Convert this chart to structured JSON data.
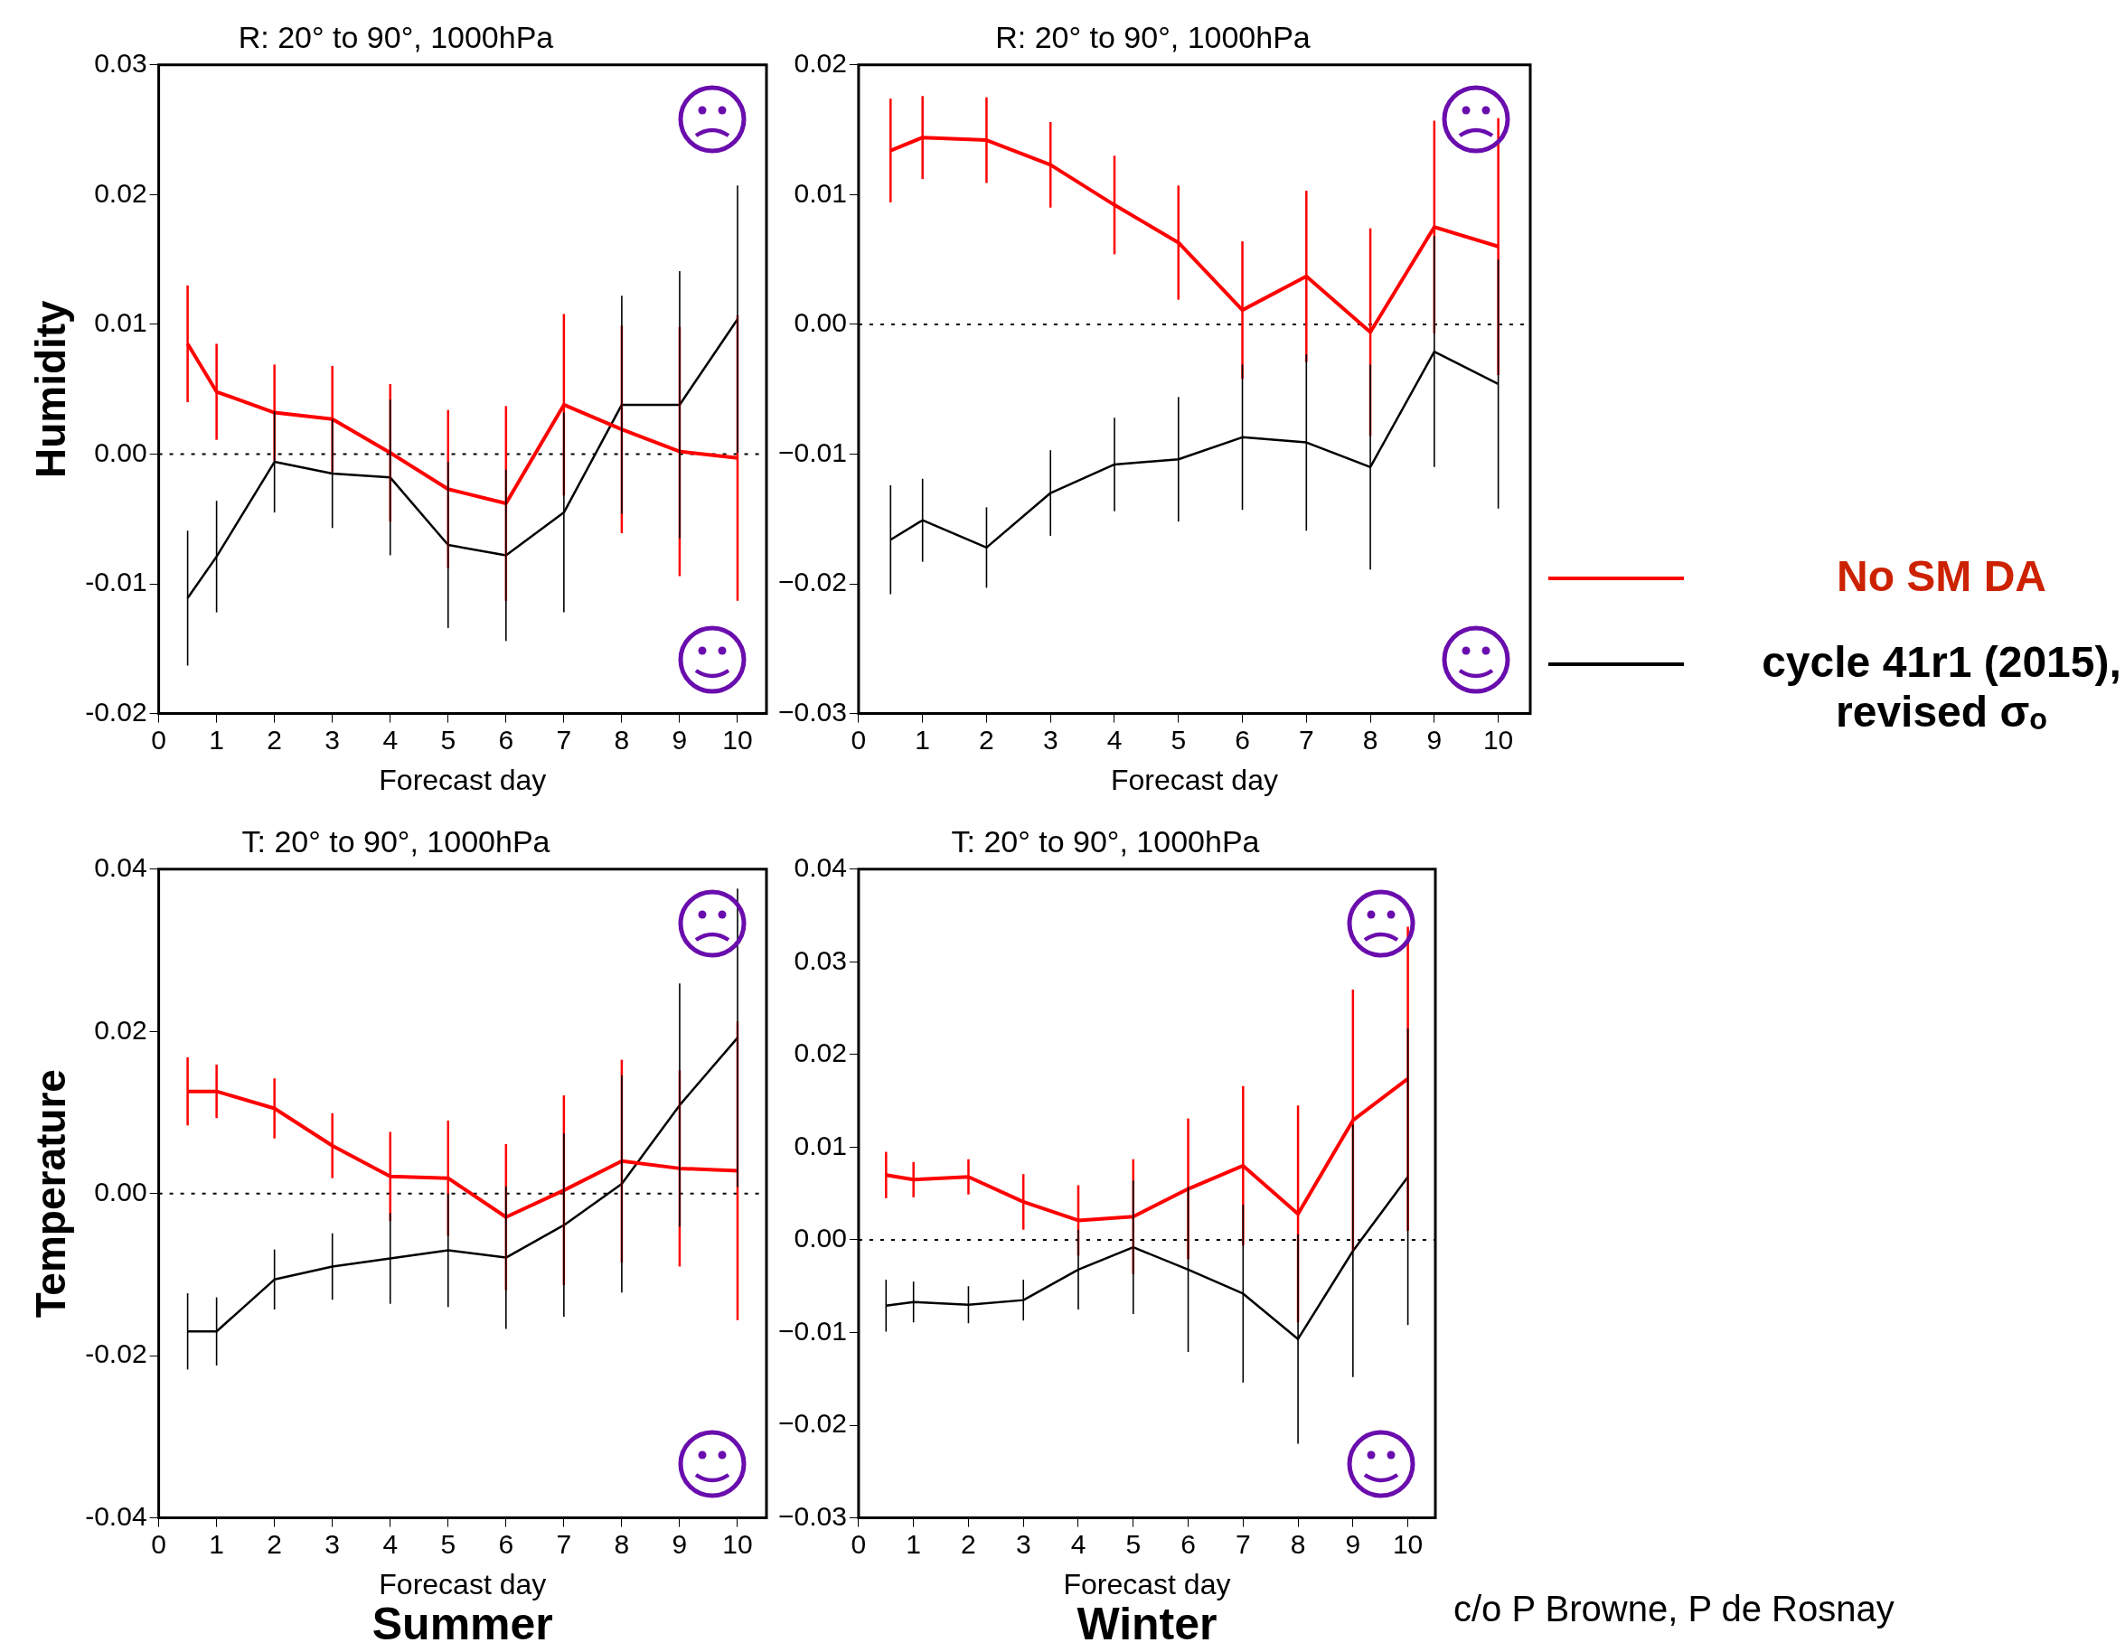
{
  "chart_data": [
    {
      "type": "line",
      "title": "R: 20° to 90°, 1000hPa",
      "xlabel": "Forecast day",
      "ylabel": "Humidity",
      "x": [
        0.5,
        1,
        2,
        3,
        4,
        5,
        6,
        7,
        8,
        9,
        10
      ],
      "xlim": [
        0,
        10.5
      ],
      "xticks": [
        0,
        1,
        2,
        3,
        4,
        5,
        6,
        7,
        8,
        9,
        10
      ],
      "ylim": [
        -0.02,
        0.03
      ],
      "yticks": [
        {
          "value": -0.02,
          "label": "-0.02"
        },
        {
          "value": -0.01,
          "label": "-0.01"
        },
        {
          "value": 0,
          "label": "0.00"
        },
        {
          "value": 0.01,
          "label": "0.01"
        },
        {
          "value": 0.02,
          "label": "0.02"
        },
        {
          "value": 0.03,
          "label": "0.03"
        }
      ],
      "marker": "none",
      "grid": false,
      "legend": false,
      "series": [
        {
          "color": "#ff0000",
          "values": [
            0.0085,
            0.0048,
            0.0032,
            0.0027,
            0.0001,
            -0.0027,
            -0.0038,
            0.0038,
            0.0019,
            0.0002,
            -0.0003
          ],
          "errors": [
            0.0045,
            0.0037,
            0.0037,
            0.0041,
            0.0053,
            0.0061,
            0.0075,
            0.007,
            0.008,
            0.0096,
            0.011
          ]
        },
        {
          "color": "#000000",
          "values": [
            -0.0111,
            -0.0079,
            -0.0006,
            -0.0015,
            -0.0018,
            -0.007,
            -0.0078,
            -0.0045,
            0.0038,
            0.0038,
            0.0104
          ],
          "errors": [
            0.0052,
            0.0043,
            0.0039,
            0.0042,
            0.006,
            0.0064,
            0.0066,
            0.0077,
            0.0084,
            0.0103,
            0.0103
          ]
        }
      ],
      "ref_lines": [
        {
          "axis": "y",
          "value": 0,
          "color": "#000000",
          "line_style": "dotted"
        }
      ]
    },
    {
      "type": "line",
      "title": "R: 20° to 90°, 1000hPa",
      "xlabel": "Forecast day",
      "x": [
        0.5,
        1,
        2,
        3,
        4,
        5,
        6,
        7,
        8,
        9,
        10
      ],
      "xlim": [
        0,
        10.5
      ],
      "xticks": [
        0,
        1,
        2,
        3,
        4,
        5,
        6,
        7,
        8,
        9,
        10
      ],
      "ylim": [
        -0.03,
        0.02
      ],
      "yticks": [
        {
          "value": -0.03,
          "label": "−0.03"
        },
        {
          "value": -0.02,
          "label": "−0.02"
        },
        {
          "value": -0.01,
          "label": "−0.01"
        },
        {
          "value": 0,
          "label": "0.00"
        },
        {
          "value": 0.01,
          "label": "0.01"
        },
        {
          "value": 0.02,
          "label": "0.02"
        }
      ],
      "marker": "none",
      "grid": false,
      "legend": "right",
      "series": [
        {
          "name": "No SM DA",
          "color": "#ff0000",
          "values": [
            0.0134,
            0.0144,
            0.0142,
            0.0123,
            0.0092,
            0.0063,
            0.0011,
            0.0037,
            -0.0006,
            0.0075,
            0.006
          ],
          "errors": [
            0.004,
            0.0032,
            0.0033,
            0.0033,
            0.0038,
            0.0044,
            0.0053,
            0.0066,
            0.008,
            0.0082,
            0.0099
          ]
        },
        {
          "name": "cycle 41r1 (2015), revised σₒ",
          "color": "#000000",
          "values": [
            -0.0166,
            -0.0151,
            -0.0172,
            -0.013,
            -0.0108,
            -0.0104,
            -0.0087,
            -0.0091,
            -0.011,
            -0.0021,
            -0.0046
          ],
          "errors": [
            0.0042,
            0.0032,
            0.0031,
            0.0033,
            0.0036,
            0.0048,
            0.0056,
            0.0068,
            0.0079,
            0.0089,
            0.0096
          ]
        }
      ],
      "ref_lines": [
        {
          "axis": "y",
          "value": 0,
          "color": "#000000",
          "line_style": "dotted"
        }
      ]
    },
    {
      "type": "line",
      "title": "T: 20° to 90°, 1000hPa",
      "xlabel": "Forecast day",
      "ylabel": "Temperature",
      "x": [
        0.5,
        1,
        2,
        3,
        4,
        5,
        6,
        7,
        8,
        9,
        10
      ],
      "xlim": [
        0,
        10.5
      ],
      "xticks": [
        0,
        1,
        2,
        3,
        4,
        5,
        6,
        7,
        8,
        9,
        10
      ],
      "ylim": [
        -0.04,
        0.04
      ],
      "yticks": [
        {
          "value": -0.04,
          "label": "-0.04"
        },
        {
          "value": -0.02,
          "label": "-0.02"
        },
        {
          "value": 0,
          "label": "0.00"
        },
        {
          "value": 0.02,
          "label": "0.02"
        },
        {
          "value": 0.04,
          "label": "0.04"
        }
      ],
      "marker": "none",
      "grid": false,
      "legend": false,
      "series": [
        {
          "color": "#ff0000",
          "values": [
            0.0126,
            0.0126,
            0.0105,
            0.0059,
            0.0021,
            0.0019,
            -0.0029,
            0.0004,
            0.004,
            0.0031,
            0.0028
          ],
          "errors": [
            0.0042,
            0.0033,
            0.0037,
            0.004,
            0.0055,
            0.0071,
            0.009,
            0.0117,
            0.0125,
            0.0121,
            0.0184
          ]
        },
        {
          "color": "#000000",
          "values": [
            -0.017,
            -0.017,
            -0.0106,
            -0.009,
            -0.008,
            -0.007,
            -0.0079,
            -0.0039,
            0.0012,
            0.0109,
            0.0192
          ],
          "errors": [
            0.0047,
            0.0042,
            0.0037,
            0.0041,
            0.0056,
            0.007,
            0.0088,
            0.0113,
            0.0134,
            0.015,
            0.0184
          ]
        }
      ],
      "ref_lines": [
        {
          "axis": "y",
          "value": 0,
          "color": "#000000",
          "line_style": "dotted"
        }
      ],
      "annotations": [
        "Summer"
      ]
    },
    {
      "type": "line",
      "title": "T: 20° to 90°, 1000hPa",
      "xlabel": "Forecast day",
      "x": [
        0.5,
        1,
        2,
        3,
        4,
        5,
        6,
        7,
        8,
        9,
        10
      ],
      "xlim": [
        0,
        10.5
      ],
      "xticks": [
        0,
        1,
        2,
        3,
        4,
        5,
        6,
        7,
        8,
        9,
        10
      ],
      "ylim": [
        -0.03,
        0.04
      ],
      "yticks": [
        {
          "value": -0.03,
          "label": "−0.03"
        },
        {
          "value": -0.02,
          "label": "−0.02"
        },
        {
          "value": -0.01,
          "label": "−0.01"
        },
        {
          "value": 0,
          "label": "0.00"
        },
        {
          "value": 0.01,
          "label": "0.01"
        },
        {
          "value": 0.02,
          "label": "0.02"
        },
        {
          "value": 0.03,
          "label": "0.03"
        },
        {
          "value": 0.04,
          "label": "0.04"
        }
      ],
      "marker": "none",
      "grid": false,
      "legend": false,
      "series": [
        {
          "color": "#ff0000",
          "values": [
            0.007,
            0.0065,
            0.0068,
            0.0041,
            0.0021,
            0.0025,
            0.0055,
            0.008,
            0.0028,
            0.0129,
            0.0174
          ],
          "errors": [
            0.0025,
            0.0019,
            0.0019,
            0.003,
            0.0038,
            0.0062,
            0.0076,
            0.0086,
            0.0117,
            0.0141,
            0.0164
          ]
        },
        {
          "color": "#000000",
          "values": [
            -0.0071,
            -0.0067,
            -0.007,
            -0.0065,
            -0.0032,
            -0.0008,
            -0.0032,
            -0.0058,
            -0.0107,
            -0.0012,
            0.0068
          ],
          "errors": [
            0.0028,
            0.0022,
            0.002,
            0.0022,
            0.0043,
            0.0072,
            0.0089,
            0.0096,
            0.0113,
            0.0136,
            0.016
          ]
        }
      ],
      "ref_lines": [
        {
          "axis": "y",
          "value": 0,
          "color": "#000000",
          "line_style": "dotted"
        }
      ],
      "annotations": [
        "Winter",
        "c/o P Browne, P de Rosnay"
      ]
    }
  ]
}
